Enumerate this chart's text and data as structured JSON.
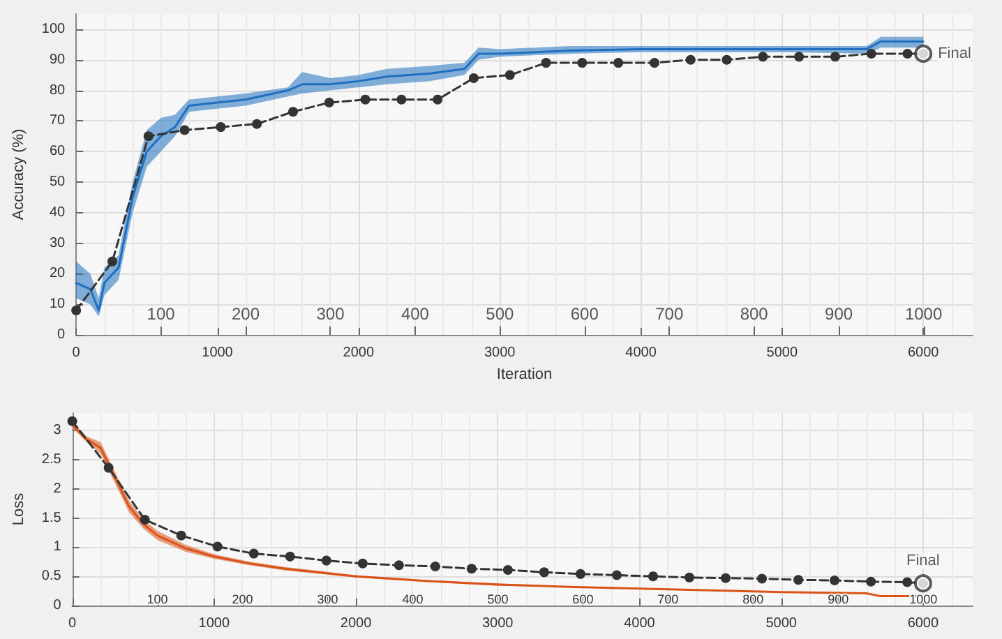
{
  "chart_data": [
    {
      "type": "line",
      "xlabel": "Iteration",
      "ylabel": "Accuracy (%)",
      "xlim": [
        0,
        6350
      ],
      "xticks": [
        0,
        1000,
        2000,
        3000,
        4000,
        5000,
        6000
      ],
      "ylim": [
        0,
        105
      ],
      "yticks": [
        0,
        10,
        20,
        30,
        40,
        50,
        60,
        70,
        80,
        90,
        100
      ],
      "x2lim": [
        0,
        1058
      ],
      "x2ticks": [
        100,
        200,
        300,
        400,
        500,
        600,
        700,
        800,
        900,
        1000
      ],
      "grid": true,
      "series": [
        {
          "color": "#1f6fc0",
          "marker": "none",
          "line_style": "solid",
          "x": [
            0,
            100,
            160,
            200,
            300,
            400,
            500,
            600,
            700,
            800,
            1000,
            1200,
            1500,
            1600,
            1800,
            2000,
            2200,
            2500,
            2750,
            2850,
            3000,
            3500,
            4000,
            5000,
            5600,
            5700,
            6000
          ],
          "values": [
            17,
            15,
            8,
            17,
            22,
            45,
            60,
            65,
            68,
            75,
            76,
            77,
            80,
            82,
            82,
            83,
            84.5,
            85.5,
            87,
            92,
            92,
            93,
            93.5,
            93.5,
            93.5,
            96,
            96
          ],
          "lower": [
            12,
            10,
            6,
            13,
            18,
            40,
            55,
            60,
            65,
            73,
            74,
            75,
            78,
            79,
            80,
            81,
            82,
            83,
            85,
            90,
            91,
            92,
            92.5,
            92.5,
            92,
            94,
            94
          ],
          "upper": [
            24,
            20,
            12,
            22,
            26,
            50,
            67,
            71,
            72,
            77,
            78,
            79,
            81,
            86,
            84,
            85,
            87,
            88,
            89,
            94,
            93.5,
            94.5,
            94.5,
            94.5,
            94.5,
            97.5,
            97.5
          ]
        },
        {
          "color": "#333333",
          "marker": "circle",
          "line_style": "dashed",
          "x": [
            0,
            256,
            512,
            768,
            1024,
            1280,
            1536,
            1792,
            2048,
            2304,
            2560,
            2816,
            3072,
            3328,
            3584,
            3840,
            4096,
            4352,
            4608,
            4864,
            5120,
            5376,
            5632,
            5888,
            6000
          ],
          "values": [
            8,
            24,
            65,
            67,
            68,
            69,
            73,
            76,
            77,
            77,
            77,
            84,
            85,
            89,
            89,
            89,
            89,
            90,
            90,
            91,
            91,
            91,
            92,
            92,
            92
          ]
        }
      ],
      "annotations": [
        {
          "text": "Final",
          "x": 6000,
          "y": 92
        }
      ]
    },
    {
      "type": "line",
      "ylabel": "Loss",
      "xlim": [
        0,
        6350
      ],
      "xticks": [
        0,
        1000,
        2000,
        3000,
        4000,
        5000,
        6000
      ],
      "ylim": [
        0,
        3.3
      ],
      "yticks": [
        0,
        0.5,
        1,
        1.5,
        2,
        2.5,
        3
      ],
      "x2lim": [
        0,
        1058
      ],
      "x2ticks": [
        100,
        200,
        300,
        400,
        500,
        600,
        700,
        800,
        900,
        1000
      ],
      "grid": true,
      "series": [
        {
          "color": "#d95319",
          "marker": "none",
          "line_style": "solid",
          "x": [
            0,
            100,
            200,
            300,
            400,
            500,
            600,
            800,
            1000,
            1250,
            1500,
            2000,
            2500,
            3000,
            3500,
            4000,
            4500,
            5000,
            5600,
            5700,
            6000
          ],
          "values": [
            3.1,
            2.85,
            2.7,
            2.2,
            1.7,
            1.4,
            1.2,
            0.98,
            0.84,
            0.72,
            0.63,
            0.5,
            0.42,
            0.36,
            0.32,
            0.29,
            0.26,
            0.23,
            0.21,
            0.16,
            0.16
          ],
          "lower": [
            3.05,
            2.8,
            2.6,
            2.1,
            1.6,
            1.32,
            1.12,
            0.92,
            0.8,
            0.69,
            0.6,
            0.48,
            0.4,
            0.34,
            0.31,
            0.28,
            0.25,
            0.22,
            0.2,
            0.15,
            0.15
          ],
          "upper": [
            3.15,
            2.9,
            2.8,
            2.3,
            1.8,
            1.48,
            1.28,
            1.04,
            0.88,
            0.75,
            0.66,
            0.52,
            0.44,
            0.38,
            0.33,
            0.3,
            0.27,
            0.24,
            0.22,
            0.17,
            0.17
          ]
        },
        {
          "color": "#333333",
          "marker": "circle",
          "line_style": "dashed",
          "x": [
            0,
            256,
            512,
            768,
            1024,
            1280,
            1536,
            1792,
            2048,
            2304,
            2560,
            2816,
            3072,
            3328,
            3584,
            3840,
            4096,
            4352,
            4608,
            4864,
            5120,
            5376,
            5632,
            5888,
            6000
          ],
          "values": [
            3.16,
            2.36,
            1.47,
            1.2,
            1.01,
            0.89,
            0.84,
            0.77,
            0.72,
            0.69,
            0.67,
            0.63,
            0.61,
            0.57,
            0.54,
            0.52,
            0.5,
            0.48,
            0.47,
            0.46,
            0.44,
            0.43,
            0.41,
            0.4,
            0.38
          ]
        }
      ],
      "annotations": [
        {
          "text": "Final",
          "x": 6000,
          "y": 0.38
        }
      ]
    }
  ]
}
